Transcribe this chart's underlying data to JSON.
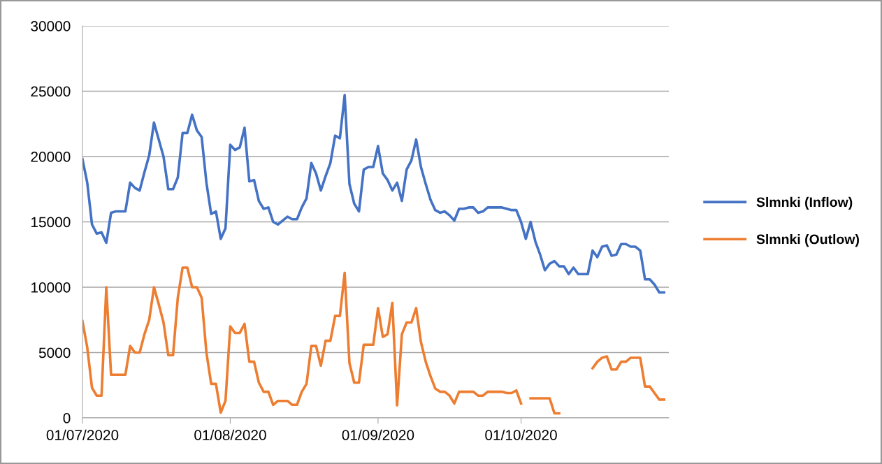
{
  "chart_data": {
    "type": "line",
    "x": [
      "2020-07-01",
      "2020-07-02",
      "2020-07-03",
      "2020-07-04",
      "2020-07-05",
      "2020-07-06",
      "2020-07-07",
      "2020-07-08",
      "2020-07-09",
      "2020-07-10",
      "2020-07-11",
      "2020-07-12",
      "2020-07-13",
      "2020-07-14",
      "2020-07-15",
      "2020-07-16",
      "2020-07-17",
      "2020-07-18",
      "2020-07-19",
      "2020-07-20",
      "2020-07-21",
      "2020-07-22",
      "2020-07-23",
      "2020-07-24",
      "2020-07-25",
      "2020-07-26",
      "2020-07-27",
      "2020-07-28",
      "2020-07-29",
      "2020-07-30",
      "2020-07-31",
      "2020-08-01",
      "2020-08-02",
      "2020-08-03",
      "2020-08-04",
      "2020-08-05",
      "2020-08-06",
      "2020-08-07",
      "2020-08-08",
      "2020-08-09",
      "2020-08-10",
      "2020-08-11",
      "2020-08-12",
      "2020-08-13",
      "2020-08-14",
      "2020-08-15",
      "2020-08-16",
      "2020-08-17",
      "2020-08-18",
      "2020-08-19",
      "2020-08-20",
      "2020-08-21",
      "2020-08-22",
      "2020-08-23",
      "2020-08-24",
      "2020-08-25",
      "2020-08-26",
      "2020-08-27",
      "2020-08-28",
      "2020-08-29",
      "2020-08-30",
      "2020-08-31",
      "2020-09-01",
      "2020-09-02",
      "2020-09-03",
      "2020-09-04",
      "2020-09-05",
      "2020-09-06",
      "2020-09-07",
      "2020-09-08",
      "2020-09-09",
      "2020-09-10",
      "2020-09-11",
      "2020-09-12",
      "2020-09-13",
      "2020-09-14",
      "2020-09-15",
      "2020-09-16",
      "2020-09-17",
      "2020-09-18",
      "2020-09-19",
      "2020-09-20",
      "2020-09-21",
      "2020-09-22",
      "2020-09-23",
      "2020-09-24",
      "2020-09-25",
      "2020-09-26",
      "2020-09-27",
      "2020-09-28",
      "2020-09-29",
      "2020-09-30",
      "2020-10-01",
      "2020-10-02",
      "2020-10-03",
      "2020-10-04",
      "2020-10-05",
      "2020-10-06",
      "2020-10-07",
      "2020-10-08",
      "2020-10-09",
      "2020-10-10",
      "2020-10-11",
      "2020-10-12",
      "2020-10-13",
      "2020-10-14",
      "2020-10-15",
      "2020-10-16",
      "2020-10-17",
      "2020-10-18",
      "2020-10-19",
      "2020-10-20",
      "2020-10-21",
      "2020-10-22",
      "2020-10-23",
      "2020-10-24",
      "2020-10-25",
      "2020-10-26",
      "2020-10-27",
      "2020-10-28",
      "2020-10-29",
      "2020-10-30",
      "2020-10-31"
    ],
    "series": [
      {
        "name": "Slmnki (Inflow)",
        "color": "#4472c4",
        "values": [
          19800,
          18000,
          14800,
          14100,
          14200,
          13400,
          15700,
          15800,
          15800,
          15800,
          18000,
          17600,
          17400,
          18800,
          20100,
          22600,
          21300,
          20000,
          17500,
          17500,
          18400,
          21800,
          21800,
          23200,
          22000,
          21500,
          18000,
          15600,
          15800,
          13700,
          14500,
          20900,
          20500,
          20700,
          22200,
          18100,
          18200,
          16600,
          16000,
          16100,
          15000,
          14800,
          15100,
          15400,
          15200,
          15200,
          16100,
          16800,
          19500,
          18700,
          17400,
          18500,
          19500,
          21600,
          21400,
          24700,
          17900,
          16400,
          15800,
          19000,
          19200,
          19200,
          20800,
          18700,
          18200,
          17400,
          18000,
          16600,
          19000,
          19700,
          21300,
          19200,
          17900,
          16700,
          15900,
          15700,
          15800,
          15500,
          15100,
          16000,
          16000,
          16100,
          16100,
          15700,
          15800,
          16100,
          16100,
          16100,
          16100,
          16000,
          15900,
          15900,
          15000,
          13700,
          15000,
          13500,
          12500,
          11300,
          11800,
          12000,
          11600,
          11600,
          11000,
          11500,
          11000,
          11000,
          11000,
          12800,
          12300,
          13100,
          13200,
          12400,
          12500,
          13300,
          13300,
          13100,
          13100,
          12800,
          10600,
          10600,
          10200,
          9600,
          9600
        ]
      },
      {
        "name": "Slmnki (Outlow)",
        "color": "#ed7d31",
        "values": [
          7400,
          5400,
          2300,
          1700,
          1700,
          10000,
          3300,
          3300,
          3300,
          3300,
          5500,
          5000,
          5000,
          6400,
          7500,
          10000,
          8700,
          7300,
          4800,
          4800,
          9200,
          11500,
          11500,
          10000,
          10000,
          9200,
          5000,
          2600,
          2600,
          400,
          1300,
          7000,
          6500,
          6500,
          7200,
          4300,
          4300,
          2700,
          2000,
          2000,
          1000,
          1300,
          1300,
          1300,
          1000,
          1000,
          2000,
          2600,
          5500,
          5500,
          4000,
          5900,
          5900,
          7800,
          7800,
          11100,
          4200,
          2700,
          2700,
          5600,
          5600,
          5600,
          8400,
          6200,
          6400,
          8800,
          960,
          6400,
          7300,
          7300,
          8400,
          5800,
          4300,
          3200,
          2250,
          2000,
          2000,
          1700,
          1100,
          2000,
          2000,
          2000,
          2000,
          1700,
          1700,
          2000,
          2000,
          2000,
          2000,
          1900,
          1900,
          2100,
          1100,
          null,
          1500,
          1500,
          1500,
          1500,
          1500,
          350,
          350,
          null,
          null,
          null,
          null,
          null,
          null,
          3800,
          4300,
          4600,
          4700,
          3700,
          3700,
          4300,
          4300,
          4600,
          4600,
          4600,
          2400,
          2400,
          1900,
          1400,
          1400
        ]
      }
    ],
    "xlim": [
      "2020-07-01",
      "2020-11-01"
    ],
    "xticks": [
      {
        "value": "2020-07-01",
        "label": "01/07/2020"
      },
      {
        "value": "2020-08-01",
        "label": "01/08/2020"
      },
      {
        "value": "2020-09-01",
        "label": "01/09/2020"
      },
      {
        "value": "2020-10-01",
        "label": "01/10/2020"
      }
    ],
    "ylim": [
      0,
      30000
    ],
    "yticks": [
      0,
      5000,
      10000,
      15000,
      20000,
      25000,
      30000
    ],
    "grid": "y",
    "legend": "right",
    "marker": "none",
    "line_style": "solid"
  }
}
